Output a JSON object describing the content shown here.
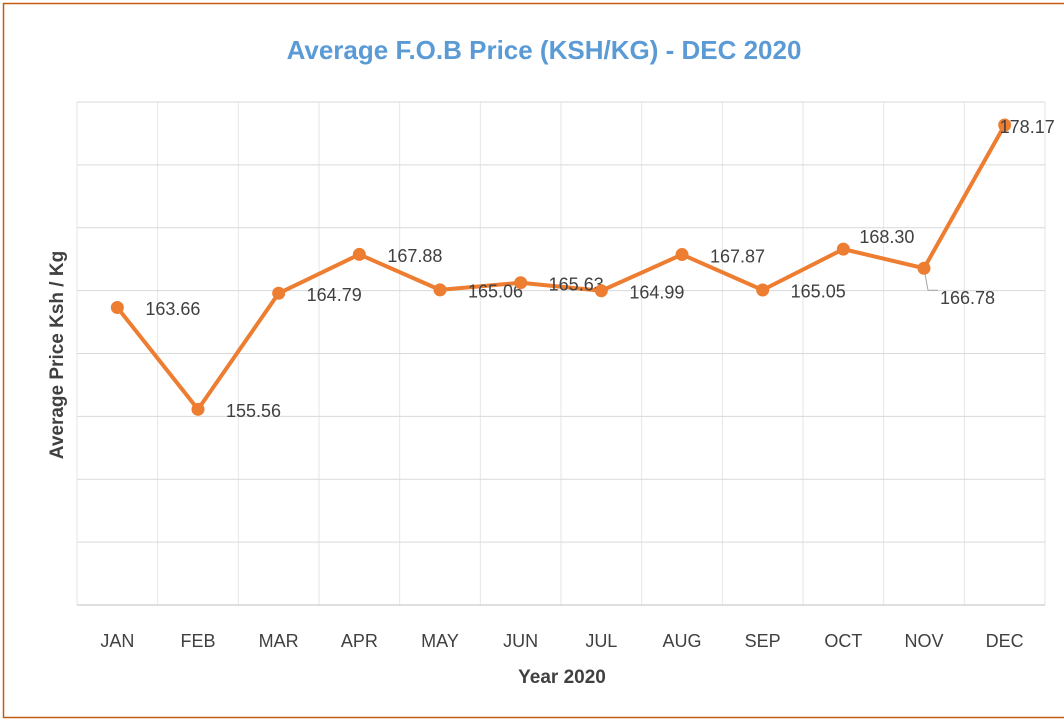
{
  "chart_data": {
    "type": "line",
    "title": "Average F.O.B Price (KSH/KG) - DEC 2020",
    "x_label": "Year 2020",
    "y_label": "Average Price Ksh / Kg",
    "categories": [
      "JAN",
      "FEB",
      "MAR",
      "APR",
      "MAY",
      "JUN",
      "JUL",
      "AUG",
      "SEP",
      "OCT",
      "NOV",
      "DEC"
    ],
    "series": [
      {
        "name": "Average Price",
        "color": "#ed7d31",
        "values": [
          163.66,
          155.56,
          164.79,
          167.88,
          165.06,
          165.63,
          164.99,
          167.87,
          165.05,
          168.3,
          166.78,
          178.17
        ],
        "value_labels": [
          "163.66",
          "155.56",
          "164.79",
          "167.88",
          "165.06",
          "165.63",
          "164.99",
          "167.87",
          "165.05",
          "168.30",
          "166.78",
          "178.17"
        ]
      }
    ],
    "ylim": [
      140,
      180
    ],
    "yticks": [
      140,
      145,
      150,
      155,
      160,
      165,
      170,
      175,
      180
    ],
    "grid": true
  }
}
